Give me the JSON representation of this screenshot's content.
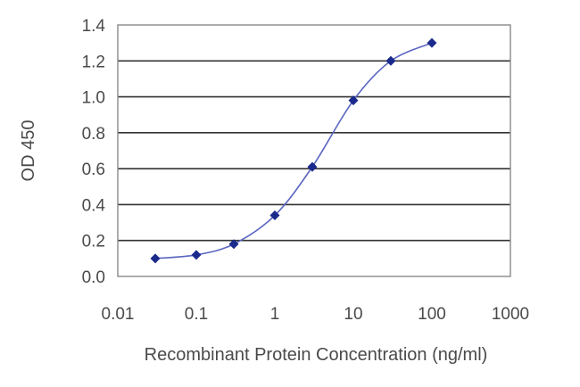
{
  "chart_data": {
    "type": "line",
    "xlabel": "Recombinant Protein Concentration (ng/ml)",
    "ylabel": "OD 450",
    "x_scale": "log",
    "xlim": [
      0.01,
      1000
    ],
    "ylim": [
      0.0,
      1.4
    ],
    "x_ticks": [
      "0.01",
      "0.1",
      "1",
      "10",
      "100",
      "1000"
    ],
    "y_ticks": [
      "0.0",
      "0.2",
      "0.4",
      "0.6",
      "0.8",
      "1.0",
      "1.2",
      "1.4"
    ],
    "grid": "horizontal",
    "series": [
      {
        "x": [
          0.03,
          0.1,
          0.3,
          1,
          3,
          10,
          30,
          100
        ],
        "y": [
          0.1,
          0.12,
          0.18,
          0.34,
          0.61,
          0.98,
          1.2,
          1.3
        ]
      }
    ],
    "colors": {
      "line": "#5a66c0",
      "marker": "#1a2a8c",
      "grid": "#333333",
      "frame": "#8a8a8a"
    }
  }
}
